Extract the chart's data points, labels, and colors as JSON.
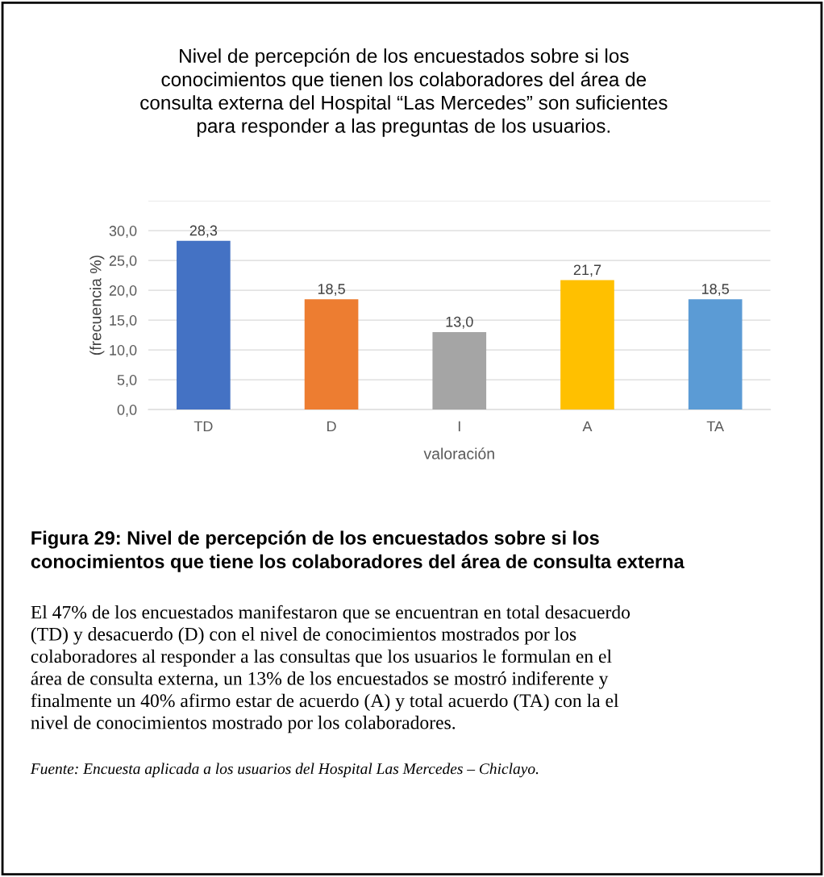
{
  "chart_data": {
    "type": "bar",
    "title": "Nivel de percepción de los encuestados sobre si los\nconocimientos que tienen los colaboradores del área de\nconsulta externa del Hospital “Las Mercedes” son suficientes\npara responder a las preguntas de los usuarios.",
    "xlabel": "valoración",
    "ylabel": "(frecuencia %)",
    "categories": [
      "TD",
      "D",
      "I",
      "A",
      "TA"
    ],
    "values": [
      28.3,
      18.5,
      13.0,
      21.7,
      18.5
    ],
    "value_labels": [
      "28,3",
      "18,5",
      "13,0",
      "21,7",
      "18,5"
    ],
    "colors": [
      "#4472c4",
      "#ed7d31",
      "#a5a5a5",
      "#ffc000",
      "#5b9bd5"
    ],
    "ylim": [
      0,
      35
    ],
    "yticks": [
      {
        "value": 0,
        "label": "0,0"
      },
      {
        "value": 5,
        "label": "5,0"
      },
      {
        "value": 10,
        "label": "10,0"
      },
      {
        "value": 15,
        "label": "15,0"
      },
      {
        "value": 20,
        "label": "20,0"
      },
      {
        "value": 25,
        "label": "25,0"
      },
      {
        "value": 30,
        "label": "30,0"
      },
      {
        "value": 35,
        "label": null
      }
    ],
    "grid": "y",
    "legend": false,
    "annotations": [
      "Figura 29: Nivel de percepción de los encuestados sobre si los\nconocimientos que tiene los colaboradores del área de consulta externa",
      "El 47% de los encuestados manifestaron que se encuentran en total desacuerdo\n(TD) y desacuerdo (D) con el nivel de conocimientos mostrados por los\ncolaboradores al responder a las consultas que los usuarios le formulan en el\nárea de consulta externa, un 13% de los encuestados se mostró indiferente y\nfinalmente un 40% afirmo estar de acuerdo (A) y total acuerdo (TA) con la el\nnivel de conocimientos mostrado por los colaboradores.",
      "Fuente: Encuesta aplicada a los usuarios del Hospital Las Mercedes – Chiclayo."
    ]
  }
}
